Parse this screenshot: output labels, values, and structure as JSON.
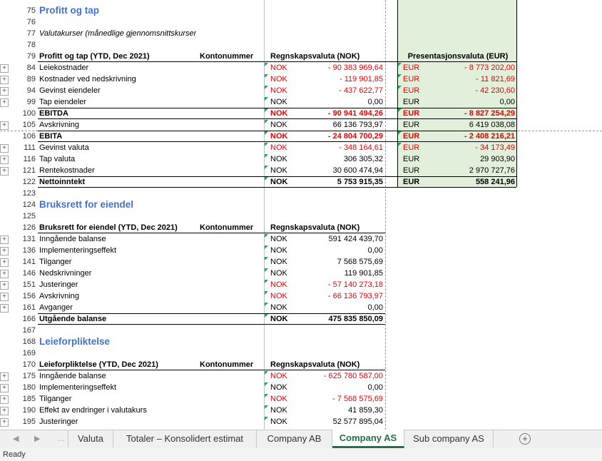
{
  "sheet": {
    "rows": [
      {
        "n": "75",
        "label": "Profitt og tap",
        "style": "title"
      },
      {
        "n": "76"
      },
      {
        "n": "77",
        "label": "Valutakurser (månedlige gjennomsnittskurser)",
        "style": "italic"
      },
      {
        "n": "78"
      },
      {
        "n": "79",
        "label": "Profitt og tap (YTD, Dec 2021)",
        "acc": "Kontonummer",
        "lhead": "Regnskapsvaluta (NOK)",
        "rhead": "Presentasjonsvaluta (EUR)",
        "style": "header"
      },
      {
        "n": "84",
        "label": "Leiekostnader",
        "lcur": "NOK",
        "lamt": "- 90 383 969,64",
        "rcur": "EUR",
        "ramt": "- 8 773 202,00",
        "neg": true,
        "plus": true
      },
      {
        "n": "89",
        "label": "Kostnader ved nedskrivning",
        "lcur": "NOK",
        "lamt": "- 119 901,85",
        "rcur": "EUR",
        "ramt": "- 11 821,69",
        "neg": true,
        "plus": true
      },
      {
        "n": "94",
        "label": "Gevinst eiendeler",
        "lcur": "NOK",
        "lamt": "- 437 622,77",
        "rcur": "EUR",
        "ramt": "- 42 230,60",
        "neg": true,
        "plus": true
      },
      {
        "n": "99",
        "label": "Tap eiendeler",
        "lcur": "NOK",
        "lamt": "0,00",
        "rcur": "EUR",
        "ramt": "0,00",
        "plus": true
      },
      {
        "n": "100",
        "label": "EBITDA",
        "lcur": "NOK",
        "lamt": "- 90 941 494,26",
        "rcur": "EUR",
        "ramt": "- 8 827 254,29",
        "neg": true,
        "style": "bold"
      },
      {
        "n": "105",
        "label": "Avskrivning",
        "lcur": "NOK",
        "lamt": "66 136 793,97",
        "rcur": "EUR",
        "ramt": "6 419 038,08",
        "plus": true
      },
      {
        "n": "106",
        "label": "EBITA",
        "lcur": "NOK",
        "lamt": "- 24 804 700,29",
        "rcur": "EUR",
        "ramt": "- 2 408 216,21",
        "neg": true,
        "style": "bold"
      },
      {
        "n": "111",
        "label": "Gevinst valuta",
        "lcur": "NOK",
        "lamt": "- 348 164,61",
        "rcur": "EUR",
        "ramt": "- 34 173,49",
        "neg": true,
        "plus": true
      },
      {
        "n": "116",
        "label": "Tap valuta",
        "lcur": "NOK",
        "lamt": "306 305,32",
        "rcur": "EUR",
        "ramt": "29 903,90",
        "plus": true
      },
      {
        "n": "121",
        "label": "Rentekostnader",
        "lcur": "NOK",
        "lamt": "30 600 474,94",
        "rcur": "EUR",
        "ramt": "2 970 727,76",
        "plus": true
      },
      {
        "n": "122",
        "label": "Nettoinntekt",
        "lcur": "NOK",
        "lamt": "5 753 915,35",
        "rcur": "EUR",
        "ramt": "558 241,96",
        "style": "bold"
      },
      {
        "n": "123"
      },
      {
        "n": "124",
        "label": "Bruksrett for eiendel",
        "style": "title"
      },
      {
        "n": "125"
      },
      {
        "n": "126",
        "label": "Bruksrett for eiendel (YTD, Dec 2021)",
        "acc": "Kontonummer",
        "lhead": "Regnskapsvaluta (NOK)",
        "style": "header"
      },
      {
        "n": "131",
        "label": "Inngående balanse",
        "lcur": "NOK",
        "lamt": "591 424 439,70",
        "plus": true
      },
      {
        "n": "136",
        "label": "Implementeringseffekt",
        "lcur": "NOK",
        "lamt": "0,00",
        "plus": true
      },
      {
        "n": "141",
        "label": "Tilganger",
        "lcur": "NOK",
        "lamt": "7 568 575,69",
        "plus": true
      },
      {
        "n": "146",
        "label": "Nedskrivninger",
        "lcur": "NOK",
        "lamt": "119 901,85",
        "plus": true
      },
      {
        "n": "151",
        "label": "Justeringer",
        "lcur": "NOK",
        "lamt": "- 57 140 273,18",
        "neg": true,
        "plus": true
      },
      {
        "n": "156",
        "label": "Avskrivning",
        "lcur": "NOK",
        "lamt": "- 66 136 793,97",
        "neg": true,
        "plus": true
      },
      {
        "n": "161",
        "label": "Avganger",
        "lcur": "NOK",
        "lamt": "0,00",
        "plus": true
      },
      {
        "n": "166",
        "label": "Utgående balanse",
        "lcur": "NOK",
        "lamt": "475 835 850,09",
        "style": "bold"
      },
      {
        "n": "167"
      },
      {
        "n": "168",
        "label": "Leieforpliktelse",
        "style": "title"
      },
      {
        "n": "169"
      },
      {
        "n": "170",
        "label": "Leieforpliktelse (YTD, Dec 2021)",
        "acc": "Kontonummer",
        "lhead": "Regnskapsvaluta (NOK)",
        "style": "header"
      },
      {
        "n": "175",
        "label": "Inngående balanse",
        "lcur": "NOK",
        "lamt": "- 625 780 587,00",
        "neg": true,
        "plus": true
      },
      {
        "n": "180",
        "label": "Implementeringseffekt",
        "lcur": "NOK",
        "lamt": "0,00",
        "plus": true
      },
      {
        "n": "185",
        "label": "Tilganger",
        "lcur": "NOK",
        "lamt": "- 7 568 575,69",
        "neg": true,
        "plus": true
      },
      {
        "n": "190",
        "label": "Effekt av endringer i valutakurs",
        "lcur": "NOK",
        "lamt": "41 859,30",
        "plus": true
      },
      {
        "n": "195",
        "label": "Justeringer",
        "lcur": "NOK",
        "lamt": "52 577 895,04",
        "plus": true
      }
    ]
  },
  "tabs": [
    {
      "label": "Valuta"
    },
    {
      "label": "Totaler – Konsolidert estimat"
    },
    {
      "label": "Company AB"
    },
    {
      "label": "Company AS",
      "active": true
    },
    {
      "label": "Sub company AS"
    }
  ],
  "tabbar": {
    "prev_icon": "◀",
    "next_icon": "▶",
    "more_icon": "…",
    "add_icon": "+"
  },
  "status": {
    "text": "Ready"
  },
  "colors": {
    "accent": "#217346",
    "negative": "#e60000",
    "title": "#4472c4",
    "eur_fill": "#e2efda"
  }
}
